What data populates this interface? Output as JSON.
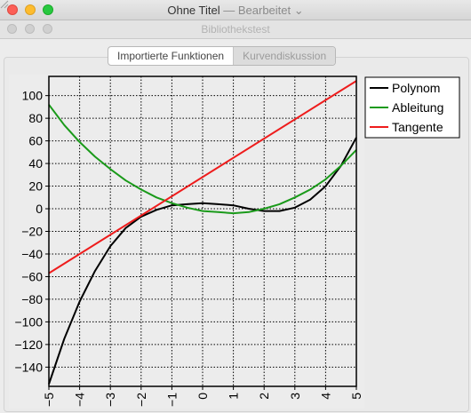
{
  "window": {
    "title": "Ohne Titel",
    "edited_suffix": "— Bearbeitet ⌄",
    "subtitle": "Bibliothekstest"
  },
  "tabs": [
    {
      "label": "Importierte Funktionen",
      "active": true
    },
    {
      "label": "Kurvendiskussion",
      "active": false
    }
  ],
  "colors": {
    "polynom": "#000000",
    "ableitung": "#1a9a1a",
    "tangente": "#ee1c1c"
  },
  "chart_data": {
    "type": "line",
    "title": "",
    "xlabel": "",
    "ylabel": "",
    "xlim": [
      -5,
      5
    ],
    "ylim": [
      -157,
      117
    ],
    "grid": true,
    "legend_position": "top-right",
    "x_ticks": [
      -5,
      -4,
      -3,
      -2,
      -1,
      0,
      1,
      2,
      3,
      4,
      5
    ],
    "y_ticks": [
      -140,
      -120,
      -100,
      -80,
      -60,
      -40,
      -20,
      0,
      20,
      40,
      60,
      80,
      100
    ],
    "series": [
      {
        "name": "Polynom",
        "color": "#000000",
        "x": [
          -5,
          -4.5,
          -4,
          -3.5,
          -3,
          -2.5,
          -2,
          -1.5,
          -1,
          -0.5,
          0,
          0.5,
          1,
          1.5,
          2,
          2.5,
          3,
          3.5,
          4,
          4.5,
          5
        ],
        "y": [
          -155,
          -115,
          -82,
          -55,
          -33,
          -17,
          -7,
          -1,
          3,
          4,
          5,
          4,
          3,
          0,
          -2,
          -2,
          1,
          8,
          20,
          38,
          63
        ]
      },
      {
        "name": "Ableitung",
        "color": "#1a9a1a",
        "x": [
          -5,
          -4.5,
          -4,
          -3.5,
          -3,
          -2.5,
          -2,
          -1.5,
          -1,
          -0.5,
          0,
          0.5,
          1,
          1.5,
          2,
          2.5,
          3,
          3.5,
          4,
          4.5,
          5
        ],
        "y": [
          92,
          74,
          59,
          46,
          35,
          25,
          17,
          10,
          5,
          1,
          -2,
          -3,
          -4,
          -3,
          0,
          4,
          10,
          17,
          26,
          38,
          52
        ]
      },
      {
        "name": "Tangente",
        "color": "#ee1c1c",
        "x": [
          -5,
          5
        ],
        "y": [
          -57,
          113
        ]
      }
    ]
  }
}
